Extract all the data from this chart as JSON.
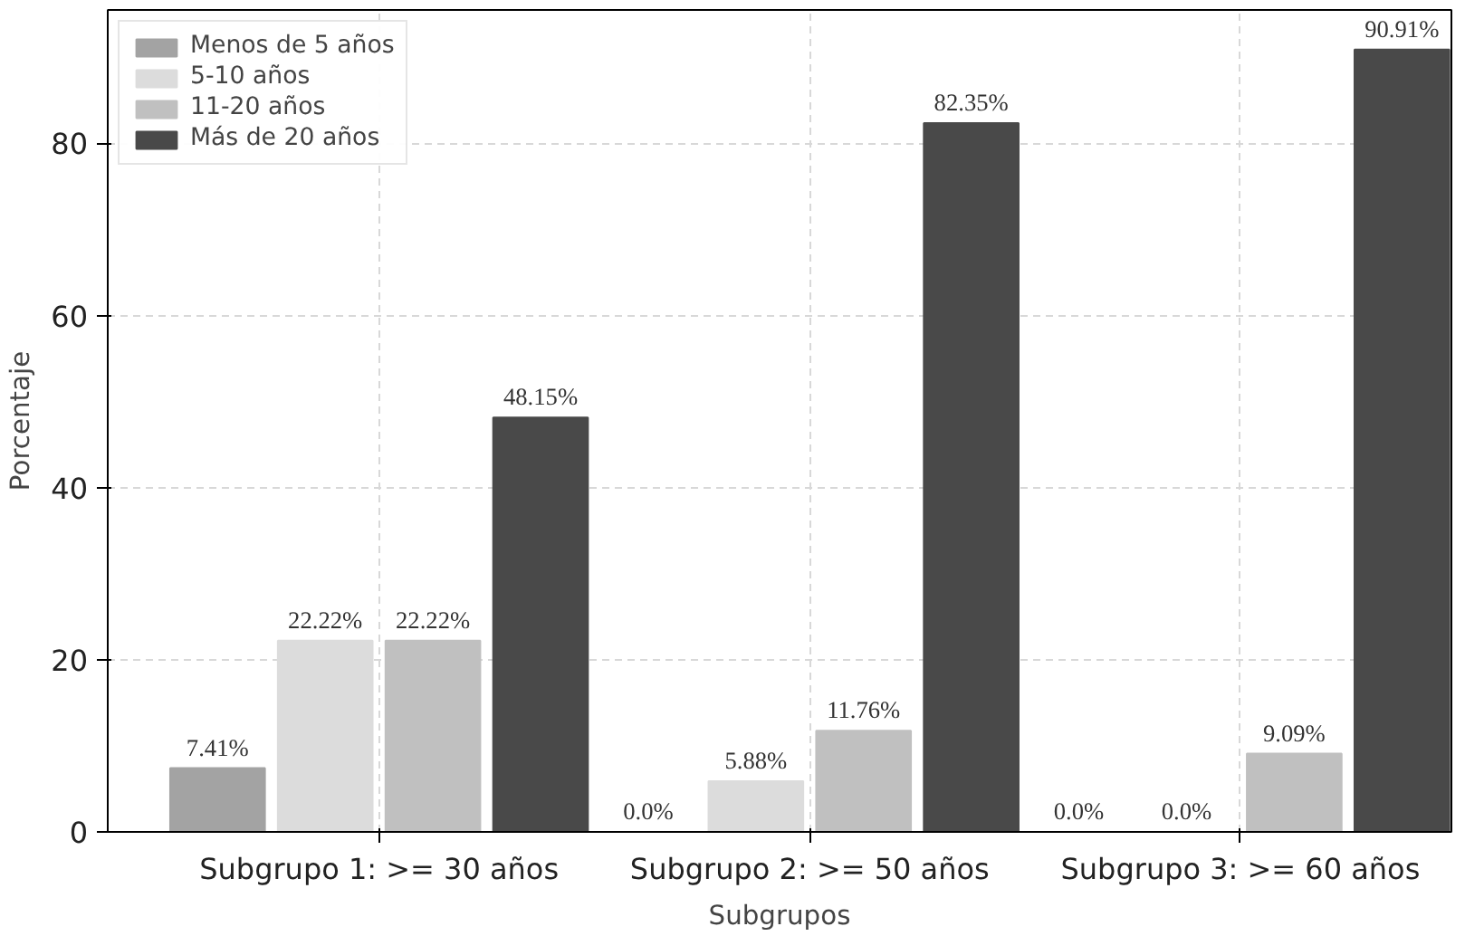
{
  "chart_data": {
    "type": "bar",
    "xlabel": "Subgrupos",
    "ylabel": "Porcentaje",
    "categories": [
      "Subgrupo 1: >= 30 años",
      "Subgrupo 2: >= 50 años",
      "Subgrupo 3: >= 60 años"
    ],
    "series": [
      {
        "name": "Menos de 5 años",
        "color": "#a3a3a3",
        "values": [
          7.41,
          0.0,
          0.0
        ],
        "value_labels": [
          "7.41%",
          "0.0%",
          "0.0%"
        ]
      },
      {
        "name": "5-10 años",
        "color": "#dcdcdc",
        "values": [
          22.22,
          5.88,
          0.0
        ],
        "value_labels": [
          "22.22%",
          "5.88%",
          "0.0%"
        ]
      },
      {
        "name": "11-20 años",
        "color": "#c0c0c0",
        "values": [
          22.22,
          11.76,
          9.09
        ],
        "value_labels": [
          "22.22%",
          "11.76%",
          "9.09%"
        ]
      },
      {
        "name": "Más de 20 años",
        "color": "#494949",
        "values": [
          48.15,
          82.35,
          90.91
        ],
        "value_labels": [
          "48.15%",
          "82.35%",
          "90.91%"
        ]
      }
    ],
    "ylim": [
      0,
      95.5
    ],
    "yticks": [
      0,
      20,
      40,
      60,
      80
    ],
    "grid": true,
    "legend": "top left"
  }
}
